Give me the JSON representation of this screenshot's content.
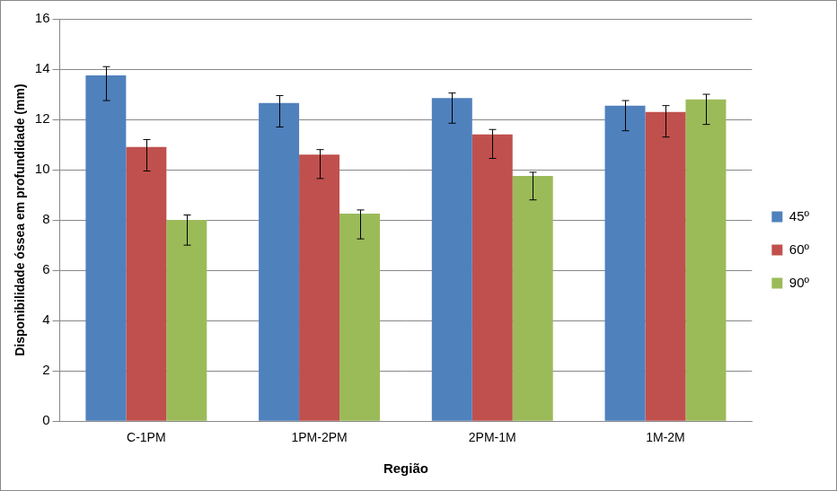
{
  "chart_data": {
    "type": "bar",
    "x_label": "Região",
    "y_label": "Disponibilidade óssea em profundidade (mm)",
    "categories": [
      "C-1PM",
      "1PM-2PM",
      "2PM-1M",
      "1M-2M"
    ],
    "series": [
      {
        "name": "45º",
        "color": "#4f81bd",
        "values": [
          13.75,
          12.65,
          12.85,
          12.55
        ],
        "error_low": [
          12.75,
          11.7,
          11.85,
          11.55
        ],
        "error_high": [
          14.1,
          12.95,
          13.05,
          12.75
        ]
      },
      {
        "name": "60º",
        "color": "#c0504d",
        "values": [
          10.9,
          10.6,
          11.4,
          12.3
        ],
        "error_low": [
          9.95,
          9.65,
          10.45,
          11.3
        ],
        "error_high": [
          11.2,
          10.8,
          11.6,
          12.55
        ]
      },
      {
        "name": "90º",
        "color": "#9bbb59",
        "values": [
          8.0,
          8.25,
          9.75,
          12.8
        ],
        "error_low": [
          7.0,
          7.25,
          8.8,
          11.8
        ],
        "error_high": [
          8.2,
          8.4,
          9.9,
          13.0
        ]
      }
    ],
    "ylim": [
      0,
      16
    ],
    "yticks": [
      0,
      2,
      4,
      6,
      8,
      10,
      12,
      14,
      16
    ],
    "grid": true,
    "legend": "right"
  }
}
